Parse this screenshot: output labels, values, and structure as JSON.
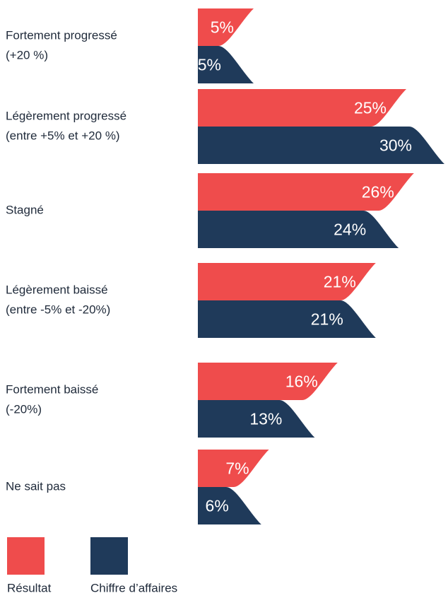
{
  "chart_data": {
    "type": "bar",
    "categories": [
      [
        "Fortement progressé",
        "(+20 %)"
      ],
      [
        "Légèrement progressé",
        "(entre +5% et +20 %)"
      ],
      [
        "Stagné"
      ],
      [
        "Légèrement baissé",
        "(entre -5% et -20%)"
      ],
      [
        "Fortement baissé",
        "(-20%)"
      ],
      [
        "Ne sait pas"
      ]
    ],
    "series": [
      {
        "name": "Résultat",
        "color": "#ef4c4c",
        "values": [
          5,
          25,
          26,
          21,
          16,
          7
        ],
        "value_labels": [
          "5%",
          "25%",
          "26%",
          "21%",
          "16%",
          "7%"
        ]
      },
      {
        "name": "Chiffre d’affaires",
        "color": "#1f3a5a",
        "values": [
          5,
          30,
          24,
          21,
          13,
          6
        ],
        "value_labels": [
          "5%",
          "30%",
          "24%",
          "21%",
          "13%",
          "6%"
        ]
      }
    ]
  }
}
